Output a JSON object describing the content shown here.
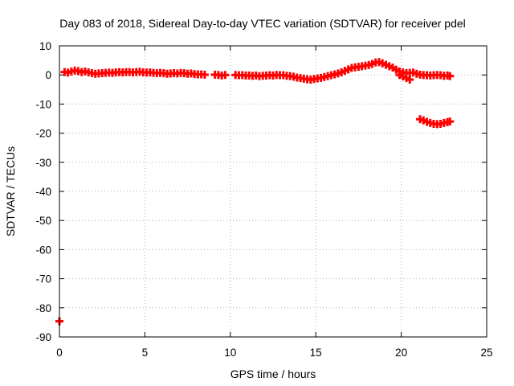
{
  "chart_data": {
    "type": "scatter",
    "title": "Day 083 of 2018, Sidereal Day-to-day VTEC variation (SDTVAR) for receiver pdel",
    "xlabel": "GPS time / hours",
    "ylabel": "SDTVAR / TECUs",
    "xlim": [
      0,
      25
    ],
    "ylim": [
      -90,
      10
    ],
    "xticks": [
      0,
      5,
      10,
      15,
      20,
      25
    ],
    "yticks": [
      10,
      0,
      -10,
      -20,
      -30,
      -40,
      -50,
      -60,
      -70,
      -80,
      -90
    ],
    "grid": true,
    "marker_color": "#ff0000",
    "series": [
      {
        "name": "SDTVAR",
        "points": [
          [
            0.3,
            1.0
          ],
          [
            0.5,
            0.8
          ],
          [
            0.7,
            1.2
          ],
          [
            0.9,
            1.5
          ],
          [
            1.1,
            1.3
          ],
          [
            1.3,
            1.0
          ],
          [
            1.5,
            1.2
          ],
          [
            1.7,
            0.9
          ],
          [
            1.9,
            0.6
          ],
          [
            2.1,
            0.4
          ],
          [
            2.3,
            0.5
          ],
          [
            2.5,
            0.6
          ],
          [
            2.7,
            0.7
          ],
          [
            2.9,
            0.8
          ],
          [
            3.1,
            0.7
          ],
          [
            3.3,
            0.9
          ],
          [
            3.5,
            1.0
          ],
          [
            3.7,
            0.9
          ],
          [
            3.9,
            1.0
          ],
          [
            4.1,
            1.0
          ],
          [
            4.3,
            0.9
          ],
          [
            4.5,
            1.0
          ],
          [
            4.7,
            1.1
          ],
          [
            4.9,
            0.9
          ],
          [
            5.1,
            0.8
          ],
          [
            5.3,
            0.9
          ],
          [
            5.5,
            0.7
          ],
          [
            5.7,
            0.6
          ],
          [
            5.9,
            0.7
          ],
          [
            6.1,
            0.6
          ],
          [
            6.3,
            0.4
          ],
          [
            6.5,
            0.5
          ],
          [
            6.7,
            0.6
          ],
          [
            6.9,
            0.5
          ],
          [
            7.1,
            0.7
          ],
          [
            7.3,
            0.6
          ],
          [
            7.5,
            0.4
          ],
          [
            7.7,
            0.5
          ],
          [
            7.9,
            0.3
          ],
          [
            8.1,
            0.2
          ],
          [
            8.3,
            0.2
          ],
          [
            8.5,
            0.1
          ],
          [
            9.1,
            0.1
          ],
          [
            9.3,
            0.0
          ],
          [
            9.5,
            -0.2
          ],
          [
            9.7,
            0.0
          ],
          [
            10.3,
            0.0
          ],
          [
            10.5,
            -0.1
          ],
          [
            10.7,
            -0.1
          ],
          [
            10.9,
            -0.2
          ],
          [
            11.1,
            -0.2
          ],
          [
            11.3,
            -0.3
          ],
          [
            11.5,
            -0.2
          ],
          [
            11.7,
            -0.4
          ],
          [
            11.9,
            -0.3
          ],
          [
            12.1,
            -0.2
          ],
          [
            12.3,
            -0.1
          ],
          [
            12.5,
            -0.2
          ],
          [
            12.7,
            0.0
          ],
          [
            12.9,
            -0.1
          ],
          [
            13.1,
            -0.1
          ],
          [
            13.3,
            -0.3
          ],
          [
            13.5,
            -0.4
          ],
          [
            13.7,
            -0.6
          ],
          [
            13.9,
            -0.9
          ],
          [
            14.1,
            -1.1
          ],
          [
            14.3,
            -1.3
          ],
          [
            14.5,
            -1.5
          ],
          [
            14.7,
            -1.6
          ],
          [
            14.9,
            -1.4
          ],
          [
            15.1,
            -1.2
          ],
          [
            15.3,
            -1.0
          ],
          [
            15.5,
            -0.7
          ],
          [
            15.7,
            -0.4
          ],
          [
            15.9,
            -0.1
          ],
          [
            16.1,
            0.2
          ],
          [
            16.3,
            0.5
          ],
          [
            16.5,
            0.9
          ],
          [
            16.7,
            1.4
          ],
          [
            16.9,
            1.9
          ],
          [
            17.1,
            2.4
          ],
          [
            17.3,
            2.6
          ],
          [
            17.5,
            2.8
          ],
          [
            17.7,
            3.0
          ],
          [
            17.9,
            3.2
          ],
          [
            18.1,
            3.4
          ],
          [
            18.3,
            3.8
          ],
          [
            18.5,
            4.3
          ],
          [
            18.7,
            4.4
          ],
          [
            18.9,
            4.0
          ],
          [
            19.1,
            3.5
          ],
          [
            19.3,
            3.0
          ],
          [
            19.5,
            2.5
          ],
          [
            19.7,
            1.8
          ],
          [
            19.9,
            1.2
          ],
          [
            20.1,
            0.9
          ],
          [
            20.3,
            0.6
          ],
          [
            20.5,
            0.7
          ],
          [
            20.7,
            0.8
          ],
          [
            20.9,
            0.4
          ],
          [
            21.1,
            0.1
          ],
          [
            21.3,
            0.0
          ],
          [
            21.5,
            -0.1
          ],
          [
            21.7,
            -0.2
          ],
          [
            21.9,
            -0.1
          ],
          [
            22.1,
            0.0
          ],
          [
            22.3,
            -0.1
          ],
          [
            22.5,
            -0.3
          ],
          [
            22.7,
            -0.2
          ],
          [
            22.85,
            -0.4
          ],
          [
            19.9,
            0.0
          ],
          [
            20.1,
            -0.5
          ],
          [
            20.3,
            -1.1
          ],
          [
            20.5,
            -1.6
          ],
          [
            21.1,
            -15.2
          ],
          [
            21.3,
            -15.6
          ],
          [
            21.5,
            -16.1
          ],
          [
            21.7,
            -16.5
          ],
          [
            21.9,
            -16.8
          ],
          [
            22.1,
            -16.9
          ],
          [
            22.3,
            -16.8
          ],
          [
            22.5,
            -16.5
          ],
          [
            22.7,
            -16.2
          ],
          [
            22.85,
            -16.0
          ],
          [
            0.0,
            -84.6
          ]
        ]
      }
    ]
  }
}
